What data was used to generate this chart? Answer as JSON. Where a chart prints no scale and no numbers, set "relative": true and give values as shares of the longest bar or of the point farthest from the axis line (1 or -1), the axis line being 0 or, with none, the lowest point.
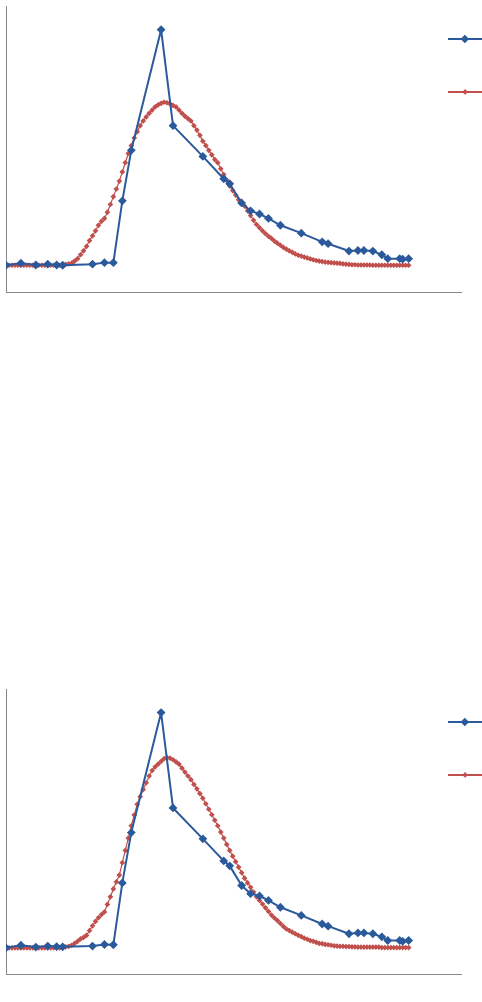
{
  "chart_data": [
    {
      "type": "line",
      "relative": true,
      "marker": "diamond",
      "grid": false,
      "categories": [
        null,
        null,
        null,
        null,
        null,
        null,
        null,
        null,
        null,
        null,
        null,
        null,
        null,
        null,
        null,
        null,
        null,
        null,
        null,
        null,
        null,
        null,
        null,
        null,
        null,
        null,
        null,
        null,
        null,
        null,
        null,
        null,
        null,
        null,
        null,
        null,
        null,
        null,
        null,
        null,
        null,
        null,
        null,
        null,
        null,
        null,
        null,
        null,
        null,
        null,
        null,
        null,
        null,
        null,
        null,
        null,
        null,
        null,
        null,
        null,
        null,
        null,
        null,
        null,
        null,
        null,
        null,
        null,
        null,
        null,
        null,
        null,
        null,
        null,
        null,
        null,
        null,
        null,
        null,
        null,
        null,
        null,
        null,
        null,
        null,
        null,
        null,
        null,
        null,
        null,
        null,
        null,
        null,
        null,
        null,
        null,
        null,
        null,
        null,
        null,
        null,
        null,
        null,
        null,
        null,
        null,
        null,
        null,
        null,
        null,
        null,
        null,
        null,
        null,
        null,
        null,
        null,
        null,
        null,
        null,
        null,
        null,
        null,
        null,
        null,
        null,
        null,
        null,
        null,
        null,
        null,
        null,
        null,
        null,
        null,
        null
      ],
      "series": [
        {
          "color": "#2a5a9c",
          "values": [
            0.104,
            null,
            null,
            null,
            null,
            0.112,
            null,
            null,
            null,
            null,
            0.105,
            null,
            null,
            null,
            0.108,
            null,
            null,
            0.105,
            null,
            0.104,
            null,
            null,
            null,
            null,
            null,
            null,
            null,
            null,
            null,
            0.108,
            null,
            null,
            null,
            0.114,
            null,
            null,
            0.114,
            null,
            null,
            0.349,
            null,
            null,
            0.541,
            null,
            null,
            null,
            null,
            null,
            null,
            null,
            null,
            null,
            1,
            null,
            null,
            null,
            0.635,
            null,
            null,
            null,
            null,
            null,
            null,
            null,
            null,
            null,
            0.518,
            null,
            null,
            null,
            null,
            null,
            null,
            0.433,
            null,
            0.414,
            null,
            null,
            null,
            0.341,
            null,
            null,
            0.311,
            null,
            null,
            0.299,
            null,
            null,
            0.282,
            null,
            null,
            null,
            0.256,
            null,
            null,
            null,
            null,
            null,
            null,
            0.226,
            null,
            null,
            null,
            null,
            null,
            null,
            0.193,
            null,
            0.186,
            null,
            null,
            null,
            null,
            null,
            null,
            0.158,
            null,
            null,
            0.16,
            null,
            0.16,
            null,
            null,
            0.158,
            null,
            null,
            0.144,
            null,
            0.129,
            null,
            null,
            null,
            0.129,
            0.127,
            null,
            0.129
          ]
        },
        {
          "color": "#c0504d",
          "values": [
            0.104,
            0.104,
            0.104,
            0.104,
            0.104,
            0.104,
            0.104,
            0.104,
            0.104,
            0.104,
            0.104,
            0.104,
            0.104,
            0.104,
            0.104,
            0.104,
            0.104,
            0.104,
            0.104,
            0.106,
            0.107,
            0.109,
            0.112,
            0.12,
            0.129,
            0.144,
            0.159,
            0.176,
            0.198,
            0.216,
            0.235,
            0.256,
            0.271,
            0.282,
            0.306,
            0.335,
            0.365,
            0.394,
            0.424,
            0.459,
            0.494,
            0.529,
            0.559,
            0.588,
            0.612,
            0.635,
            0.653,
            0.668,
            0.682,
            0.694,
            0.706,
            0.714,
            0.72,
            0.724,
            0.722,
            0.718,
            0.712,
            0.706,
            0.694,
            0.682,
            0.671,
            0.662,
            0.653,
            0.635,
            0.618,
            0.598,
            0.576,
            0.559,
            0.541,
            0.524,
            0.506,
            0.494,
            0.471,
            0.449,
            0.427,
            0.406,
            0.388,
            0.371,
            0.353,
            0.339,
            0.329,
            0.311,
            0.293,
            0.275,
            0.259,
            0.247,
            0.235,
            0.224,
            0.214,
            0.206,
            0.196,
            0.188,
            0.18,
            0.172,
            0.165,
            0.159,
            0.153,
            0.147,
            0.142,
            0.139,
            0.135,
            0.132,
            0.128,
            0.125,
            0.122,
            0.12,
            0.118,
            0.116,
            0.115,
            0.114,
            0.113,
            0.112,
            0.111,
            0.109,
            0.108,
            0.107,
            0.106,
            0.106,
            0.105,
            0.105,
            0.105,
            0.105,
            0.105,
            0.104,
            0.104,
            0.104,
            0.104,
            0.104,
            0.104,
            0.104,
            0.104,
            0.104,
            0.104,
            0.104,
            0.104,
            0.104
          ]
        }
      ]
    },
    {
      "type": "line",
      "relative": true,
      "marker": "diamond",
      "grid": false,
      "categories": [
        null,
        null,
        null,
        null,
        null,
        null,
        null,
        null,
        null,
        null,
        null,
        null,
        null,
        null,
        null,
        null,
        null,
        null,
        null,
        null,
        null,
        null,
        null,
        null,
        null,
        null,
        null,
        null,
        null,
        null,
        null,
        null,
        null,
        null,
        null,
        null,
        null,
        null,
        null,
        null,
        null,
        null,
        null,
        null,
        null,
        null,
        null,
        null,
        null,
        null,
        null,
        null,
        null,
        null,
        null,
        null,
        null,
        null,
        null,
        null,
        null,
        null,
        null,
        null,
        null,
        null,
        null,
        null,
        null,
        null,
        null,
        null,
        null,
        null,
        null,
        null,
        null,
        null,
        null,
        null,
        null,
        null,
        null,
        null,
        null,
        null,
        null,
        null,
        null,
        null,
        null,
        null,
        null,
        null,
        null,
        null,
        null,
        null,
        null,
        null,
        null,
        null,
        null,
        null,
        null,
        null,
        null,
        null,
        null,
        null,
        null,
        null,
        null,
        null,
        null,
        null,
        null,
        null,
        null,
        null,
        null,
        null,
        null,
        null,
        null,
        null,
        null,
        null,
        null,
        null,
        null,
        null,
        null,
        null,
        null,
        null
      ],
      "series": [
        {
          "color": "#2a5a9c",
          "values": [
            0.102,
            null,
            null,
            null,
            null,
            0.112,
            null,
            null,
            null,
            null,
            0.105,
            null,
            null,
            null,
            0.109,
            null,
            null,
            0.107,
            null,
            0.106,
            null,
            null,
            null,
            null,
            null,
            null,
            null,
            null,
            null,
            0.109,
            null,
            null,
            null,
            0.115,
            null,
            null,
            0.114,
            null,
            null,
            0.35,
            null,
            null,
            0.542,
            null,
            null,
            null,
            null,
            null,
            null,
            null,
            null,
            null,
            1,
            null,
            null,
            null,
            0.636,
            null,
            null,
            null,
            null,
            null,
            null,
            null,
            null,
            null,
            0.518,
            null,
            null,
            null,
            null,
            null,
            null,
            0.434,
            null,
            0.415,
            null,
            null,
            null,
            0.34,
            null,
            null,
            0.309,
            null,
            null,
            0.3,
            null,
            null,
            0.283,
            null,
            null,
            null,
            0.257,
            null,
            null,
            null,
            null,
            null,
            null,
            0.226,
            null,
            null,
            null,
            null,
            null,
            null,
            0.193,
            null,
            0.185,
            null,
            null,
            null,
            null,
            null,
            null,
            0.156,
            null,
            null,
            0.159,
            null,
            0.159,
            null,
            null,
            0.156,
            null,
            null,
            0.144,
            null,
            0.13,
            null,
            null,
            null,
            0.13,
            0.127,
            null,
            0.13
          ]
        },
        {
          "color": "#c0504d",
          "values": [
            0.102,
            0.102,
            0.102,
            0.102,
            0.102,
            0.102,
            0.102,
            0.102,
            0.102,
            0.102,
            0.102,
            0.102,
            0.102,
            0.102,
            0.102,
            0.102,
            0.102,
            0.102,
            0.102,
            0.103,
            0.106,
            0.108,
            0.112,
            0.119,
            0.127,
            0.136,
            0.142,
            0.15,
            0.168,
            0.186,
            0.203,
            0.217,
            0.229,
            0.239,
            0.268,
            0.297,
            0.327,
            0.354,
            0.38,
            0.427,
            0.474,
            0.521,
            0.568,
            0.609,
            0.65,
            0.679,
            0.706,
            0.732,
            0.758,
            0.779,
            0.793,
            0.803,
            0.814,
            0.824,
            0.828,
            0.826,
            0.82,
            0.812,
            0.803,
            0.788,
            0.773,
            0.758,
            0.744,
            0.726,
            0.709,
            0.691,
            0.673,
            0.652,
            0.631,
            0.61,
            0.589,
            0.568,
            0.544,
            0.521,
            0.497,
            0.474,
            0.452,
            0.431,
            0.41,
            0.389,
            0.368,
            0.35,
            0.333,
            0.315,
            0.297,
            0.283,
            0.269,
            0.255,
            0.241,
            0.227,
            0.216,
            0.206,
            0.195,
            0.184,
            0.174,
            0.168,
            0.162,
            0.156,
            0.15,
            0.145,
            0.139,
            0.135,
            0.13,
            0.127,
            0.123,
            0.119,
            0.118,
            0.115,
            0.114,
            0.112,
            0.11,
            0.109,
            0.108,
            0.108,
            0.107,
            0.107,
            0.106,
            0.106,
            0.105,
            0.105,
            0.105,
            0.105,
            0.105,
            0.105,
            0.105,
            0.105,
            0.103,
            0.103,
            0.103,
            0.103,
            0.103,
            0.103,
            0.103,
            0.103,
            0.103,
            0.103
          ]
        }
      ]
    }
  ]
}
